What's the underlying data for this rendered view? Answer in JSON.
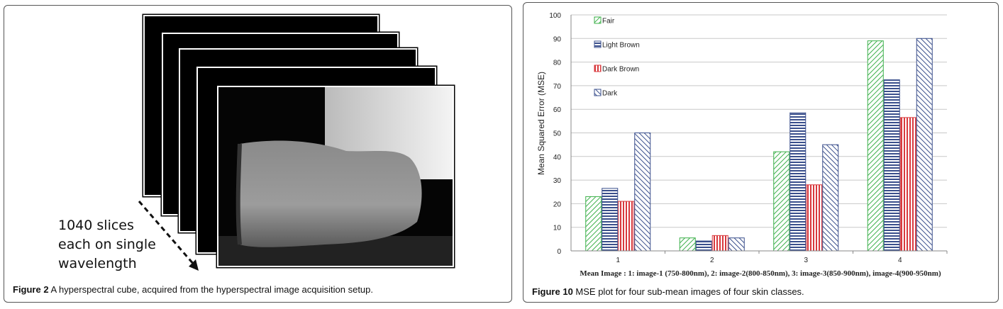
{
  "figure2": {
    "annotation_lines": [
      "1040 slices",
      "each on single",
      "wavelength"
    ],
    "caption_label": "Figure 2",
    "caption_text": "A hyperspectral cube, acquired from the hyperspectral image acquisition setup."
  },
  "figure10": {
    "caption_label": "Figure 10",
    "caption_text": "MSE plot for four sub-mean images of four skin classes."
  },
  "chart_data": {
    "type": "bar",
    "categories": [
      "1",
      "2",
      "3",
      "4"
    ],
    "series": [
      {
        "name": "Fair",
        "values": [
          23,
          5.5,
          42,
          89
        ],
        "color": "#3cb04a",
        "pattern": "diagonal-forward"
      },
      {
        "name": "Light Brown",
        "values": [
          26.5,
          4.2,
          58.5,
          72.5
        ],
        "color": "#3a4f8c",
        "pattern": "horizontal"
      },
      {
        "name": "Dark Brown",
        "values": [
          21,
          6.5,
          28,
          56.5
        ],
        "color": "#d9393d",
        "pattern": "vertical"
      },
      {
        "name": "Dark",
        "values": [
          50,
          5.5,
          45,
          90
        ],
        "color": "#3a4f8c",
        "pattern": "diagonal-back"
      }
    ],
    "ylabel": "Mean Squared Error (MSE)",
    "xlabel": "Mean Image : 1: image-1 (750-800nm), 2: image-2(800-850nm), 3: image-3(850-900nm), image-4(900-950nm)",
    "yticks": [
      "0",
      "10",
      "20",
      "30",
      "40",
      "50",
      "60",
      "70",
      "80",
      "90",
      "100"
    ],
    "ylim": [
      0,
      100
    ],
    "grid": true,
    "legend_position": "top-left"
  }
}
